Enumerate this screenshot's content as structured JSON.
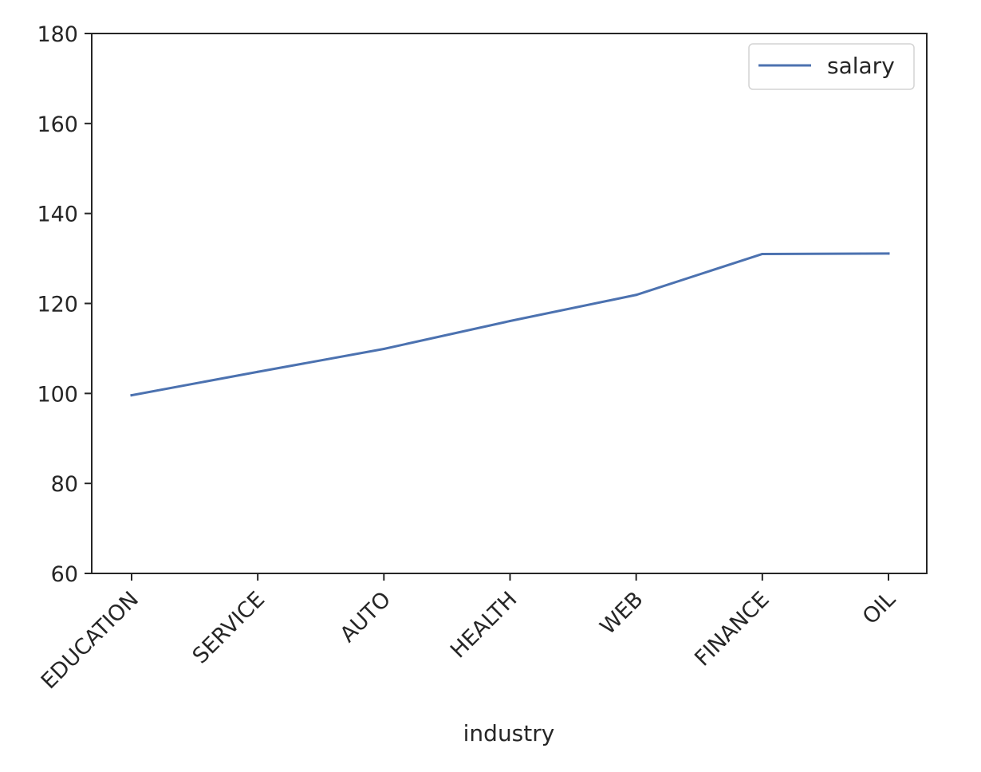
{
  "chart_data": {
    "type": "line",
    "title": "",
    "xlabel": "industry",
    "ylabel": "",
    "categories": [
      "EDUCATION",
      "SERVICE",
      "AUTO",
      "HEALTH",
      "WEB",
      "FINANCE",
      "OIL"
    ],
    "series": [
      {
        "name": "salary",
        "values": [
          99.6,
          104.8,
          109.9,
          116.1,
          121.9,
          131.0,
          131.1
        ],
        "color": "#4c72b0"
      }
    ],
    "ylim": [
      60,
      180
    ],
    "yticks": [
      60,
      80,
      100,
      120,
      140,
      160,
      180
    ],
    "grid": false,
    "legend_position": "top-right"
  }
}
